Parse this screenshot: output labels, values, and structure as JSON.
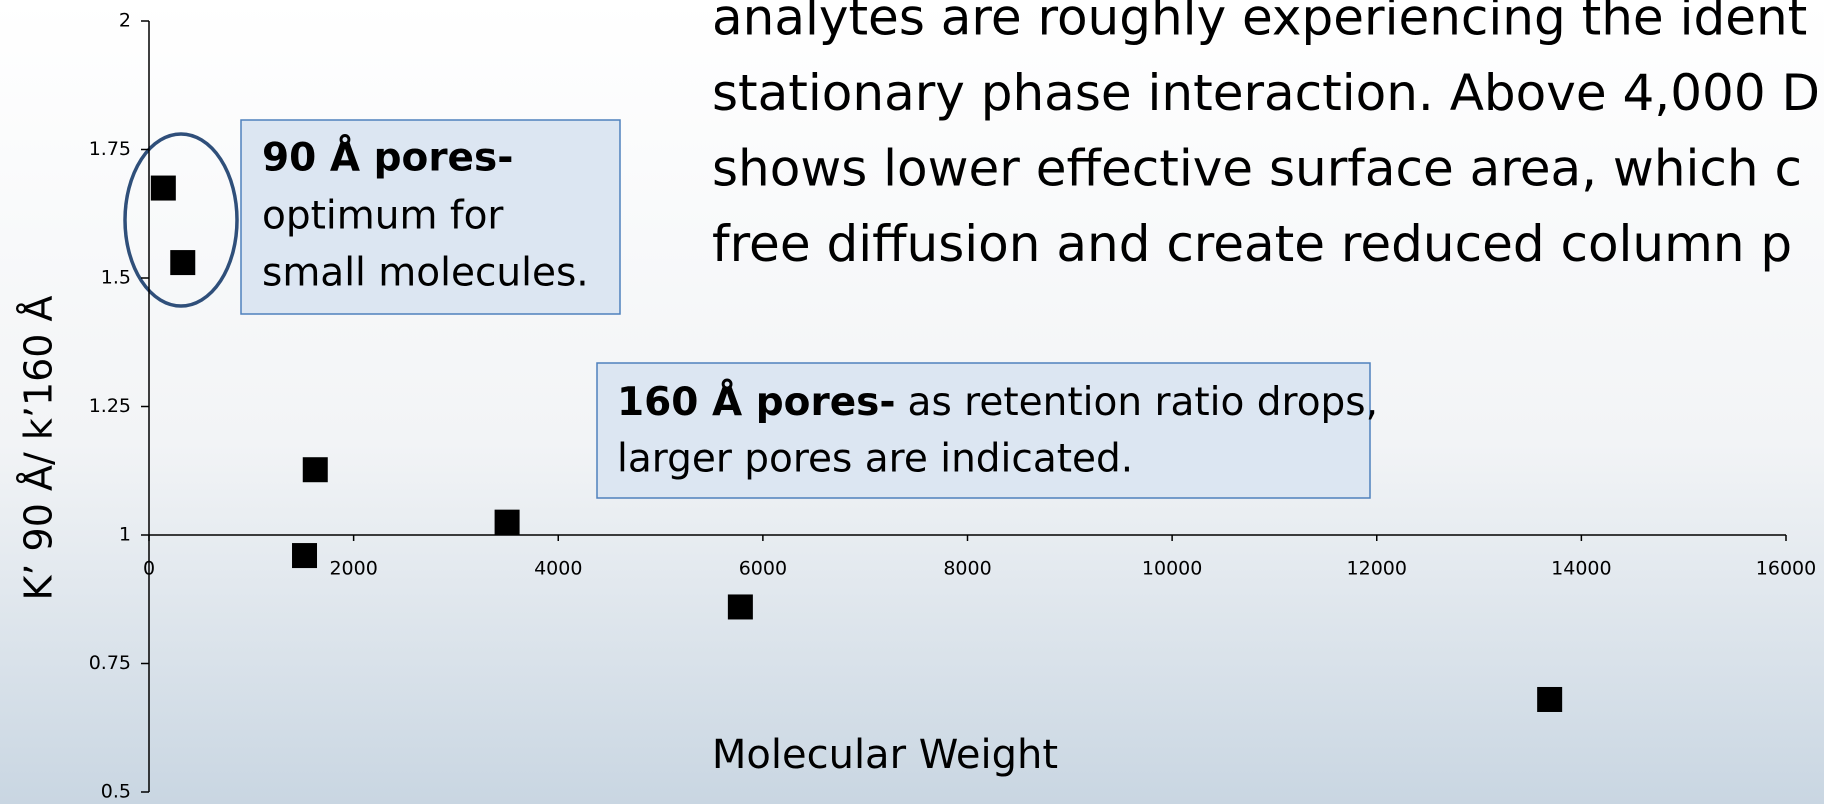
{
  "slide_text": [
    "analytes are roughly experiencing the ident",
    "stationary phase interaction. Above 4,000 D",
    "shows lower effective surface area, which c",
    "free diffusion and create reduced column p"
  ],
  "annotations": [
    {
      "bold": "90 Å pores-",
      "text": [
        "optimum for",
        "small molecules."
      ]
    },
    {
      "bold": "160 Å pores-",
      "text": [
        "as retention ratio drops,",
        "larger pores are indicated."
      ]
    }
  ],
  "chart_data": {
    "type": "scatter",
    "x_label": "Molecular Weight",
    "y_label": "K’ 90 Å/ k’160 Å",
    "x": [
      140,
      330,
      1625,
      1520,
      3500,
      5780,
      13690
    ],
    "values": [
      1.675,
      1.53,
      1.127,
      0.96,
      1.025,
      0.86,
      0.68
    ],
    "color": "#000000",
    "xlim": [
      0,
      16000
    ],
    "xticks": [
      0,
      2000,
      4000,
      6000,
      8000,
      10000,
      12000,
      14000,
      16000
    ],
    "ylim": [
      0.5,
      2
    ],
    "yticks": [
      0.5,
      0.75,
      1,
      1.25,
      1.5,
      1.75,
      2
    ],
    "x_axis_crosses": 1
  }
}
